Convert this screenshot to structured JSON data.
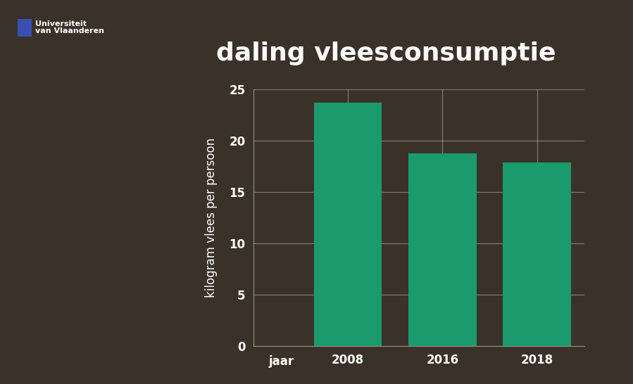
{
  "chart_data": {
    "type": "bar",
    "title": "daling vleesconsumptie",
    "x_label": "jaar",
    "y_label": "kilogram vlees per persoon",
    "annotations": [
      "Universiteit\nvan Vlaanderen"
    ],
    "categories": [
      "2008",
      "2016",
      "2018"
    ],
    "values": [
      23.7,
      18.8,
      17.9
    ],
    "color": "#1b9a6e",
    "ylim": [
      0,
      25
    ],
    "yticks": [
      0,
      5,
      10,
      15,
      20,
      25
    ],
    "grid": true
  }
}
